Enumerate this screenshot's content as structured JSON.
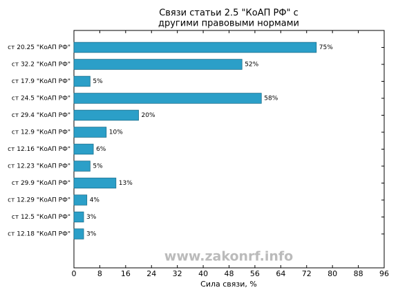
{
  "chart_data": {
    "type": "barh",
    "title": [
      "Связи статьи 2.5 \"КоАП РФ\" с",
      "другими правовыми нормами"
    ],
    "xlabel": "Сила связи, %",
    "watermark": "www.zakonrf.info",
    "categories": [
      "ст 20.25 \"КоАП РФ\"",
      "ст 32.2 \"КоАП РФ\"",
      "ст 17.9 \"КоАП РФ\"",
      "ст 24.5 \"КоАП РФ\"",
      "ст 29.4 \"КоАП РФ\"",
      "ст 12.9 \"КоАП РФ\"",
      "ст 12.16 \"КоАП РФ\"",
      "ст 12.23 \"КоАП РФ\"",
      "ст 29.9 \"КоАП РФ\"",
      "ст 12.29 \"КоАП РФ\"",
      "ст 12.5 \"КоАП РФ\"",
      "ст 12.18 \"КоАП РФ\""
    ],
    "values": [
      75,
      52,
      5,
      58,
      20,
      10,
      6,
      5,
      13,
      4,
      3,
      3
    ],
    "value_labels": [
      "75%",
      "52%",
      "5%",
      "58%",
      "20%",
      "10%",
      "6%",
      "5%",
      "13%",
      "4%",
      "3%",
      "3%"
    ],
    "color": "#2b9fc8",
    "xlim": [
      0,
      96
    ],
    "xticks": [
      0,
      8,
      16,
      24,
      32,
      40,
      48,
      56,
      64,
      72,
      80,
      88,
      96
    ],
    "grid": false
  }
}
